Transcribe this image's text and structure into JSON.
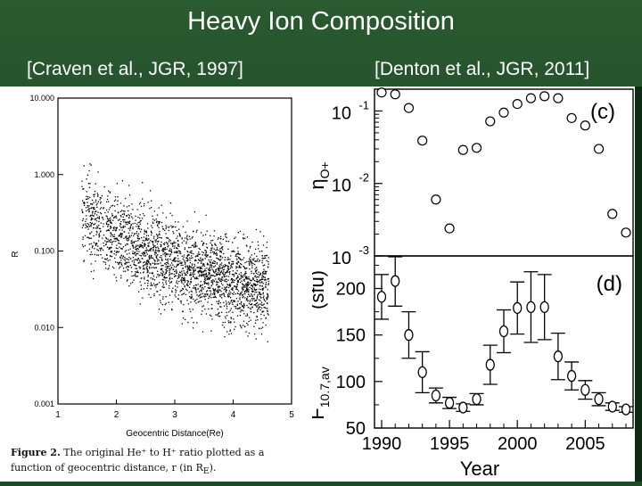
{
  "slide": {
    "title": "Heavy Ion Composition",
    "left_source": "[Craven et al., JGR, 1997]",
    "right_source": "[Denton et al., JGR, 2011]",
    "colors": {
      "background": "#1f4a26",
      "text": "#ffffff",
      "panel": "#ffffff",
      "ink": "#000000"
    }
  },
  "caption": {
    "label": "Figure 2.",
    "text": "The original He⁺ to H⁺ ratio plotted as a function of geocentric distance, r (in R",
    "subscript": "E",
    "end": ")."
  },
  "chart_data": [
    {
      "type": "scatter",
      "xlabel": "Geocentric Distance(Re)",
      "ylabel": "R",
      "xlim": [
        1,
        5
      ],
      "ylim": [
        0.001,
        10
      ],
      "yscale": "log",
      "x_ticks": [
        "1",
        "2",
        "3",
        "4",
        "5"
      ],
      "y_ticks": [
        "10.000",
        "1.000",
        "0.100",
        "0.010",
        "0.001"
      ],
      "density": {
        "x": [
          1.4,
          1.6,
          1.8,
          2.0,
          2.2,
          2.4,
          2.6,
          2.8,
          3.0,
          3.2,
          3.4,
          3.6,
          3.8,
          4.0,
          4.2,
          4.4,
          4.6
        ],
        "median": [
          0.3,
          0.25,
          0.2,
          0.16,
          0.13,
          0.11,
          0.09,
          0.08,
          0.07,
          0.06,
          0.055,
          0.05,
          0.045,
          0.04,
          0.035,
          0.035,
          0.035
        ],
        "spread_decades": 0.5
      }
    },
    {
      "type": "scatter",
      "panel_label": "(c)",
      "ylabel": "η",
      "ylabel_sub": "O+",
      "yscale": "log",
      "ylim": [
        0.001,
        0.2
      ],
      "y_ticks": [
        "10",
        "10",
        "10"
      ],
      "y_tick_exponents": [
        "-1",
        "-2",
        "-3"
      ],
      "xlim": [
        1990,
        2008
      ],
      "series": [
        {
          "x": [
            1990,
            1991,
            1992,
            1993,
            1994,
            1995,
            1996,
            1997,
            1998,
            1999,
            2000,
            2001,
            2002,
            2003,
            2004,
            2005,
            2006,
            2007,
            2008
          ],
          "values": [
            0.18,
            0.17,
            0.11,
            0.039,
            0.006,
            0.0024,
            0.029,
            0.031,
            0.072,
            0.095,
            0.125,
            0.15,
            0.16,
            0.15,
            0.08,
            0.063,
            0.03,
            0.0038,
            0.0021
          ]
        }
      ]
    },
    {
      "type": "scatter",
      "panel_label": "(d)",
      "ylabel": "F",
      "ylabel_sub": "10.7,av",
      "ylabel_unit": "(sfu)",
      "xlabel": "Year",
      "xlim": [
        1990,
        2008
      ],
      "ylim": [
        50,
        235
      ],
      "x_ticks": [
        "1990",
        "1995",
        "2000",
        "2005"
      ],
      "y_ticks": [
        "50",
        "100",
        "150",
        "200"
      ],
      "series": [
        {
          "x": [
            1990,
            1991,
            1992,
            1993,
            1994,
            1995,
            1996,
            1997,
            1998,
            1999,
            2000,
            2001,
            2002,
            2003,
            2004,
            2005,
            2006,
            2007,
            2008
          ],
          "values": [
            191,
            208,
            150,
            110,
            85,
            77,
            72,
            81,
            118,
            154,
            179,
            180,
            180,
            127,
            106,
            91,
            81,
            73,
            70
          ],
          "errors": [
            24,
            27,
            25,
            22,
            8,
            6,
            4,
            6,
            21,
            23,
            28,
            38,
            35,
            25,
            15,
            10,
            7,
            4,
            3
          ]
        }
      ]
    }
  ]
}
